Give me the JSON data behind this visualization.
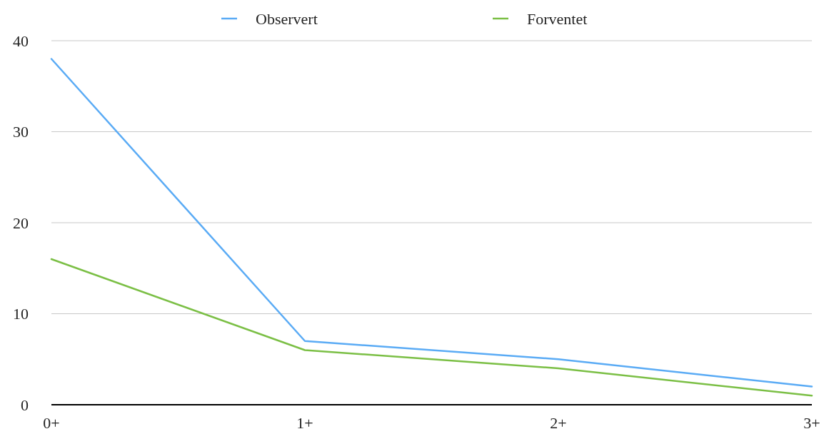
{
  "chart_data": {
    "type": "line",
    "categories": [
      "0+",
      "1+",
      "2+",
      "3+"
    ],
    "series": [
      {
        "name": "Observert",
        "color": "#5aabf5",
        "values": [
          38,
          7,
          5,
          2
        ]
      },
      {
        "name": "Forventet",
        "color": "#7bbf45",
        "values": [
          16,
          6,
          4,
          1
        ]
      }
    ],
    "ylim": [
      0,
      40
    ],
    "yticks": [
      0,
      10,
      20,
      30,
      40
    ],
    "grid": "y",
    "legend": "top",
    "marker": "none",
    "line_style": "solid"
  }
}
